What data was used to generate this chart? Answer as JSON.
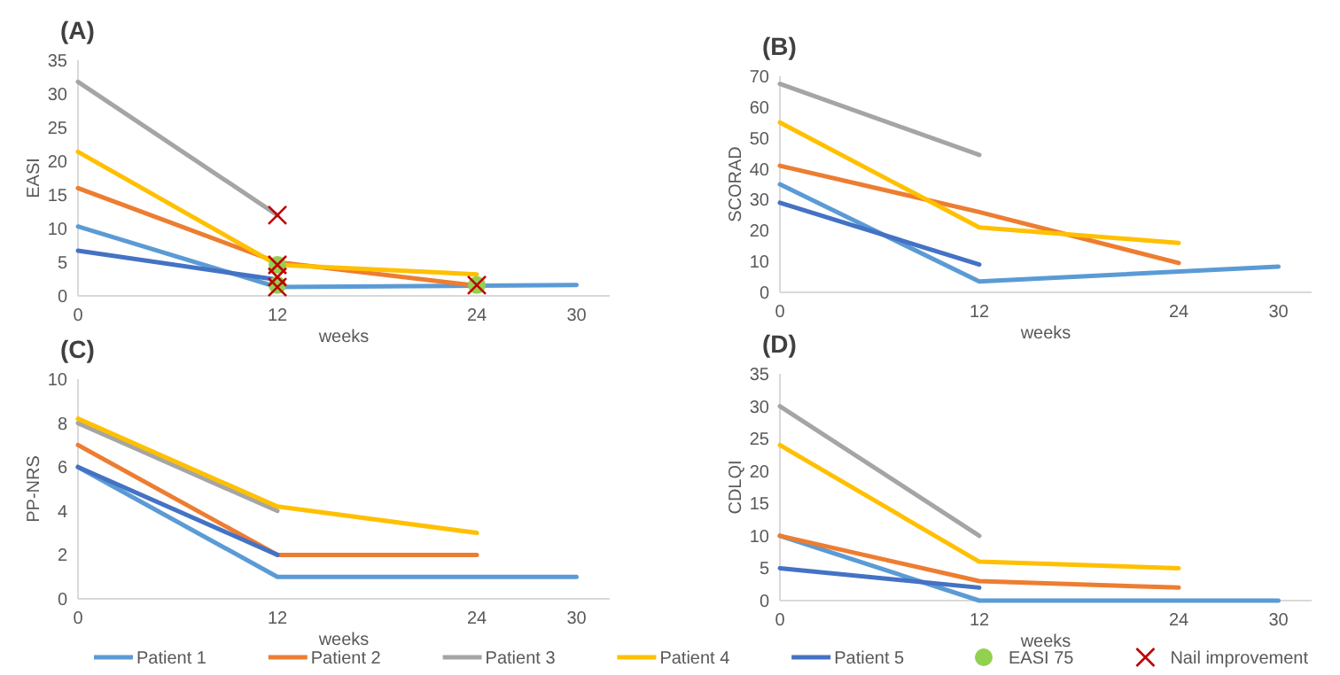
{
  "chart_data": [
    {
      "type": "line",
      "title": "(A)",
      "xlabel": "weeks",
      "ylabel": "EASI",
      "xlim": [
        0,
        32
      ],
      "xticks": [
        0,
        12,
        24,
        30
      ],
      "ylim": [
        0,
        35
      ],
      "yticks": [
        0,
        5,
        10,
        15,
        20,
        25,
        30,
        35
      ],
      "legend": "bottom",
      "marker": "none",
      "series": [
        {
          "name": "Patient 1",
          "color": "#5b9bd5",
          "x": [
            0,
            12,
            24,
            30
          ],
          "values": [
            10.3,
            1.3,
            1.5,
            1.6
          ]
        },
        {
          "name": "Patient 2",
          "color": "#ed7d31",
          "x": [
            0,
            12,
            24
          ],
          "values": [
            16,
            5,
            1.5
          ]
        },
        {
          "name": "Patient 3",
          "color": "#a5a5a5",
          "x": [
            0,
            12
          ],
          "values": [
            31.8,
            12
          ]
        },
        {
          "name": "Patient 4",
          "color": "#ffc000",
          "x": [
            0,
            12,
            24
          ],
          "values": [
            21.4,
            4.6,
            3.2
          ]
        },
        {
          "name": "Patient 5",
          "color": "#4472c4",
          "x": [
            0,
            12
          ],
          "values": [
            6.7,
            2.4
          ]
        },
        {
          "name": "EASI 75",
          "type": "scatter",
          "marker": "circle",
          "color": "#92d050",
          "x": [
            12,
            12,
            24
          ],
          "values": [
            4.6,
            1.6,
            1.6
          ]
        },
        {
          "name": "Nail improvement",
          "type": "scatter",
          "marker": "cross",
          "color": "#c00000",
          "x": [
            12,
            12,
            12,
            12,
            24
          ],
          "values": [
            12,
            4.6,
            2.8,
            1.3,
            1.6
          ]
        }
      ]
    },
    {
      "type": "line",
      "title": "(B)",
      "xlabel": "weeks",
      "ylabel": "SCORAD",
      "xlim": [
        0,
        32
      ],
      "xticks": [
        0,
        12,
        24,
        30
      ],
      "ylim": [
        0,
        70
      ],
      "yticks": [
        0,
        10,
        20,
        30,
        40,
        50,
        60,
        70
      ],
      "marker": "none",
      "series": [
        {
          "color": "#5b9bd5",
          "x": [
            0,
            12,
            30
          ],
          "values": [
            35,
            3.5,
            8.3
          ]
        },
        {
          "color": "#ed7d31",
          "x": [
            0,
            12,
            24
          ],
          "values": [
            41,
            26,
            9.5
          ]
        },
        {
          "color": "#a5a5a5",
          "x": [
            0,
            12
          ],
          "values": [
            67.5,
            44.5
          ]
        },
        {
          "color": "#ffc000",
          "x": [
            0,
            12,
            24
          ],
          "values": [
            55,
            21,
            16
          ]
        },
        {
          "color": "#4472c4",
          "x": [
            0,
            12
          ],
          "values": [
            29,
            9
          ]
        }
      ]
    },
    {
      "type": "line",
      "title": "(C)",
      "xlabel": "weeks",
      "ylabel": "PP-NRS",
      "xlim": [
        0,
        32
      ],
      "xticks": [
        0,
        12,
        24,
        30
      ],
      "ylim": [
        0,
        10
      ],
      "yticks": [
        0,
        2,
        4,
        6,
        8,
        10
      ],
      "marker": "none",
      "series": [
        {
          "color": "#5b9bd5",
          "x": [
            0,
            12,
            24,
            30
          ],
          "values": [
            6,
            1,
            1,
            1
          ]
        },
        {
          "color": "#ed7d31",
          "x": [
            0,
            12,
            24
          ],
          "values": [
            7,
            2,
            2
          ]
        },
        {
          "color": "#a5a5a5",
          "x": [
            0,
            12
          ],
          "values": [
            8,
            4
          ]
        },
        {
          "color": "#ffc000",
          "x": [
            0,
            12,
            24
          ],
          "values": [
            8.2,
            4.2,
            3
          ]
        },
        {
          "color": "#4472c4",
          "x": [
            0,
            12
          ],
          "values": [
            6,
            2
          ]
        }
      ]
    },
    {
      "type": "line",
      "title": "(D)",
      "xlabel": "weeks",
      "ylabel": "CDLQI",
      "xlim": [
        0,
        32
      ],
      "xticks": [
        0,
        12,
        24,
        30
      ],
      "ylim": [
        0,
        35
      ],
      "yticks": [
        0,
        5,
        10,
        15,
        20,
        25,
        30,
        35
      ],
      "marker": "none",
      "series": [
        {
          "color": "#5b9bd5",
          "x": [
            0,
            12,
            24,
            30
          ],
          "values": [
            10,
            0,
            0,
            0
          ]
        },
        {
          "color": "#ed7d31",
          "x": [
            0,
            12,
            24
          ],
          "values": [
            10,
            3,
            2
          ]
        },
        {
          "color": "#a5a5a5",
          "x": [
            0,
            12
          ],
          "values": [
            30,
            10
          ]
        },
        {
          "color": "#ffc000",
          "x": [
            0,
            12,
            24
          ],
          "values": [
            24,
            6,
            5
          ]
        },
        {
          "color": "#4472c4",
          "x": [
            0,
            12
          ],
          "values": [
            5,
            2
          ]
        }
      ]
    }
  ]
}
